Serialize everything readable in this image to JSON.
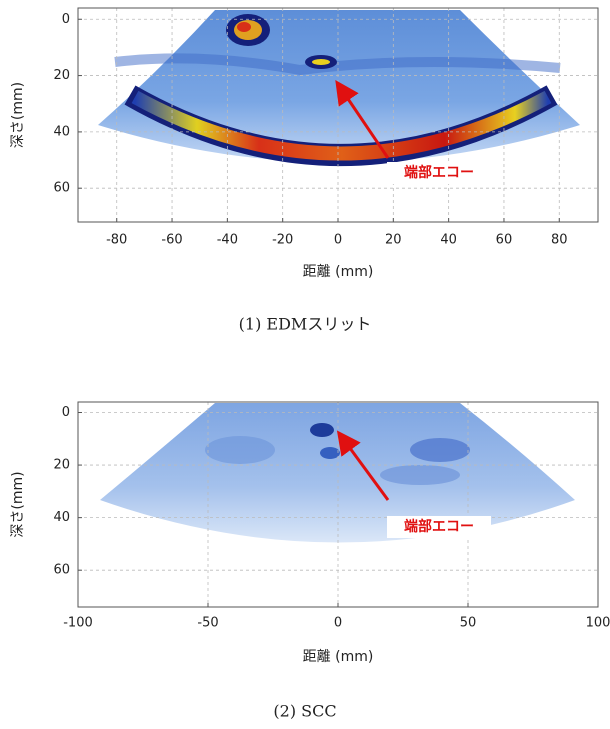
{
  "chart_data": [
    {
      "type": "heatmap",
      "xlabel": "距離 (mm)",
      "ylabel": "深さ(mm)",
      "caption": "(1) EDMスリット",
      "xlim": [
        -94,
        94
      ],
      "ylim": [
        -4,
        72
      ],
      "xticks": [
        -80,
        -60,
        -40,
        -20,
        0,
        20,
        40,
        60,
        80
      ],
      "yticks": [
        0,
        20,
        40,
        60
      ],
      "grid": true,
      "annotation": "端部エコー"
    },
    {
      "type": "heatmap",
      "xlabel": "距離 (mm)",
      "ylabel": "深さ(mm)",
      "caption": "(2) SCC",
      "xlim": [
        -100,
        100
      ],
      "ylim": [
        -4,
        74
      ],
      "xticks": [
        -100,
        -50,
        0,
        50,
        100
      ],
      "yticks": [
        0,
        20,
        40,
        60
      ],
      "grid": true,
      "annotation": "端部エコー"
    }
  ]
}
